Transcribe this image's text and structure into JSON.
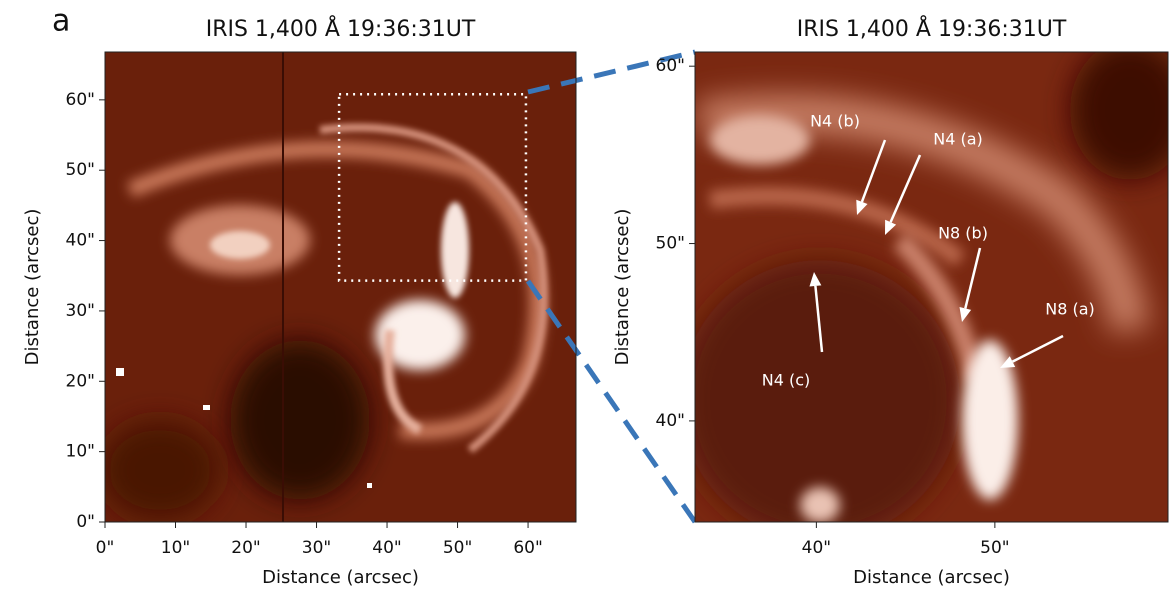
{
  "panel_label": "a",
  "chart_data": [
    {
      "type": "image",
      "title": "IRIS 1,400 Å 19:36:31UT",
      "xlabel": "Distance (arcsec)",
      "ylabel": "Distance (arcsec)",
      "xlim": [
        0,
        66.8
      ],
      "ylim": [
        0,
        66.8
      ],
      "xticks": [
        {
          "value": 0,
          "label": "0\""
        },
        {
          "value": 10,
          "label": "10\""
        },
        {
          "value": 20,
          "label": "20\""
        },
        {
          "value": 30,
          "label": "30\""
        },
        {
          "value": 40,
          "label": "40\""
        },
        {
          "value": 50,
          "label": "50\""
        },
        {
          "value": 60,
          "label": "60\""
        }
      ],
      "yticks": [
        {
          "value": 0,
          "label": "0\""
        },
        {
          "value": 10,
          "label": "10\""
        },
        {
          "value": 20,
          "label": "20\""
        },
        {
          "value": 30,
          "label": "30\""
        },
        {
          "value": 40,
          "label": "40\""
        },
        {
          "value": 50,
          "label": "50\""
        },
        {
          "value": 60,
          "label": "60\""
        }
      ]
    },
    {
      "type": "image",
      "title": "IRIS 1,400 Å 19:36:31UT",
      "xlabel": "Distance (arcsec)",
      "ylabel": "Distance (arcsec)",
      "xlim": [
        33.2,
        59.7
      ],
      "ylim": [
        34.3,
        60.8
      ],
      "xticks": [
        {
          "value": 40,
          "label": "40\""
        },
        {
          "value": 50,
          "label": "50\""
        }
      ],
      "yticks": [
        {
          "value": 40,
          "label": "40\""
        },
        {
          "value": 50,
          "label": "50\""
        },
        {
          "value": 60,
          "label": "60\""
        }
      ],
      "annotations": [
        "N4 (b)",
        "N4 (a)",
        "N8 (b)",
        "N8 (a)",
        "N4 (c)"
      ]
    }
  ]
}
